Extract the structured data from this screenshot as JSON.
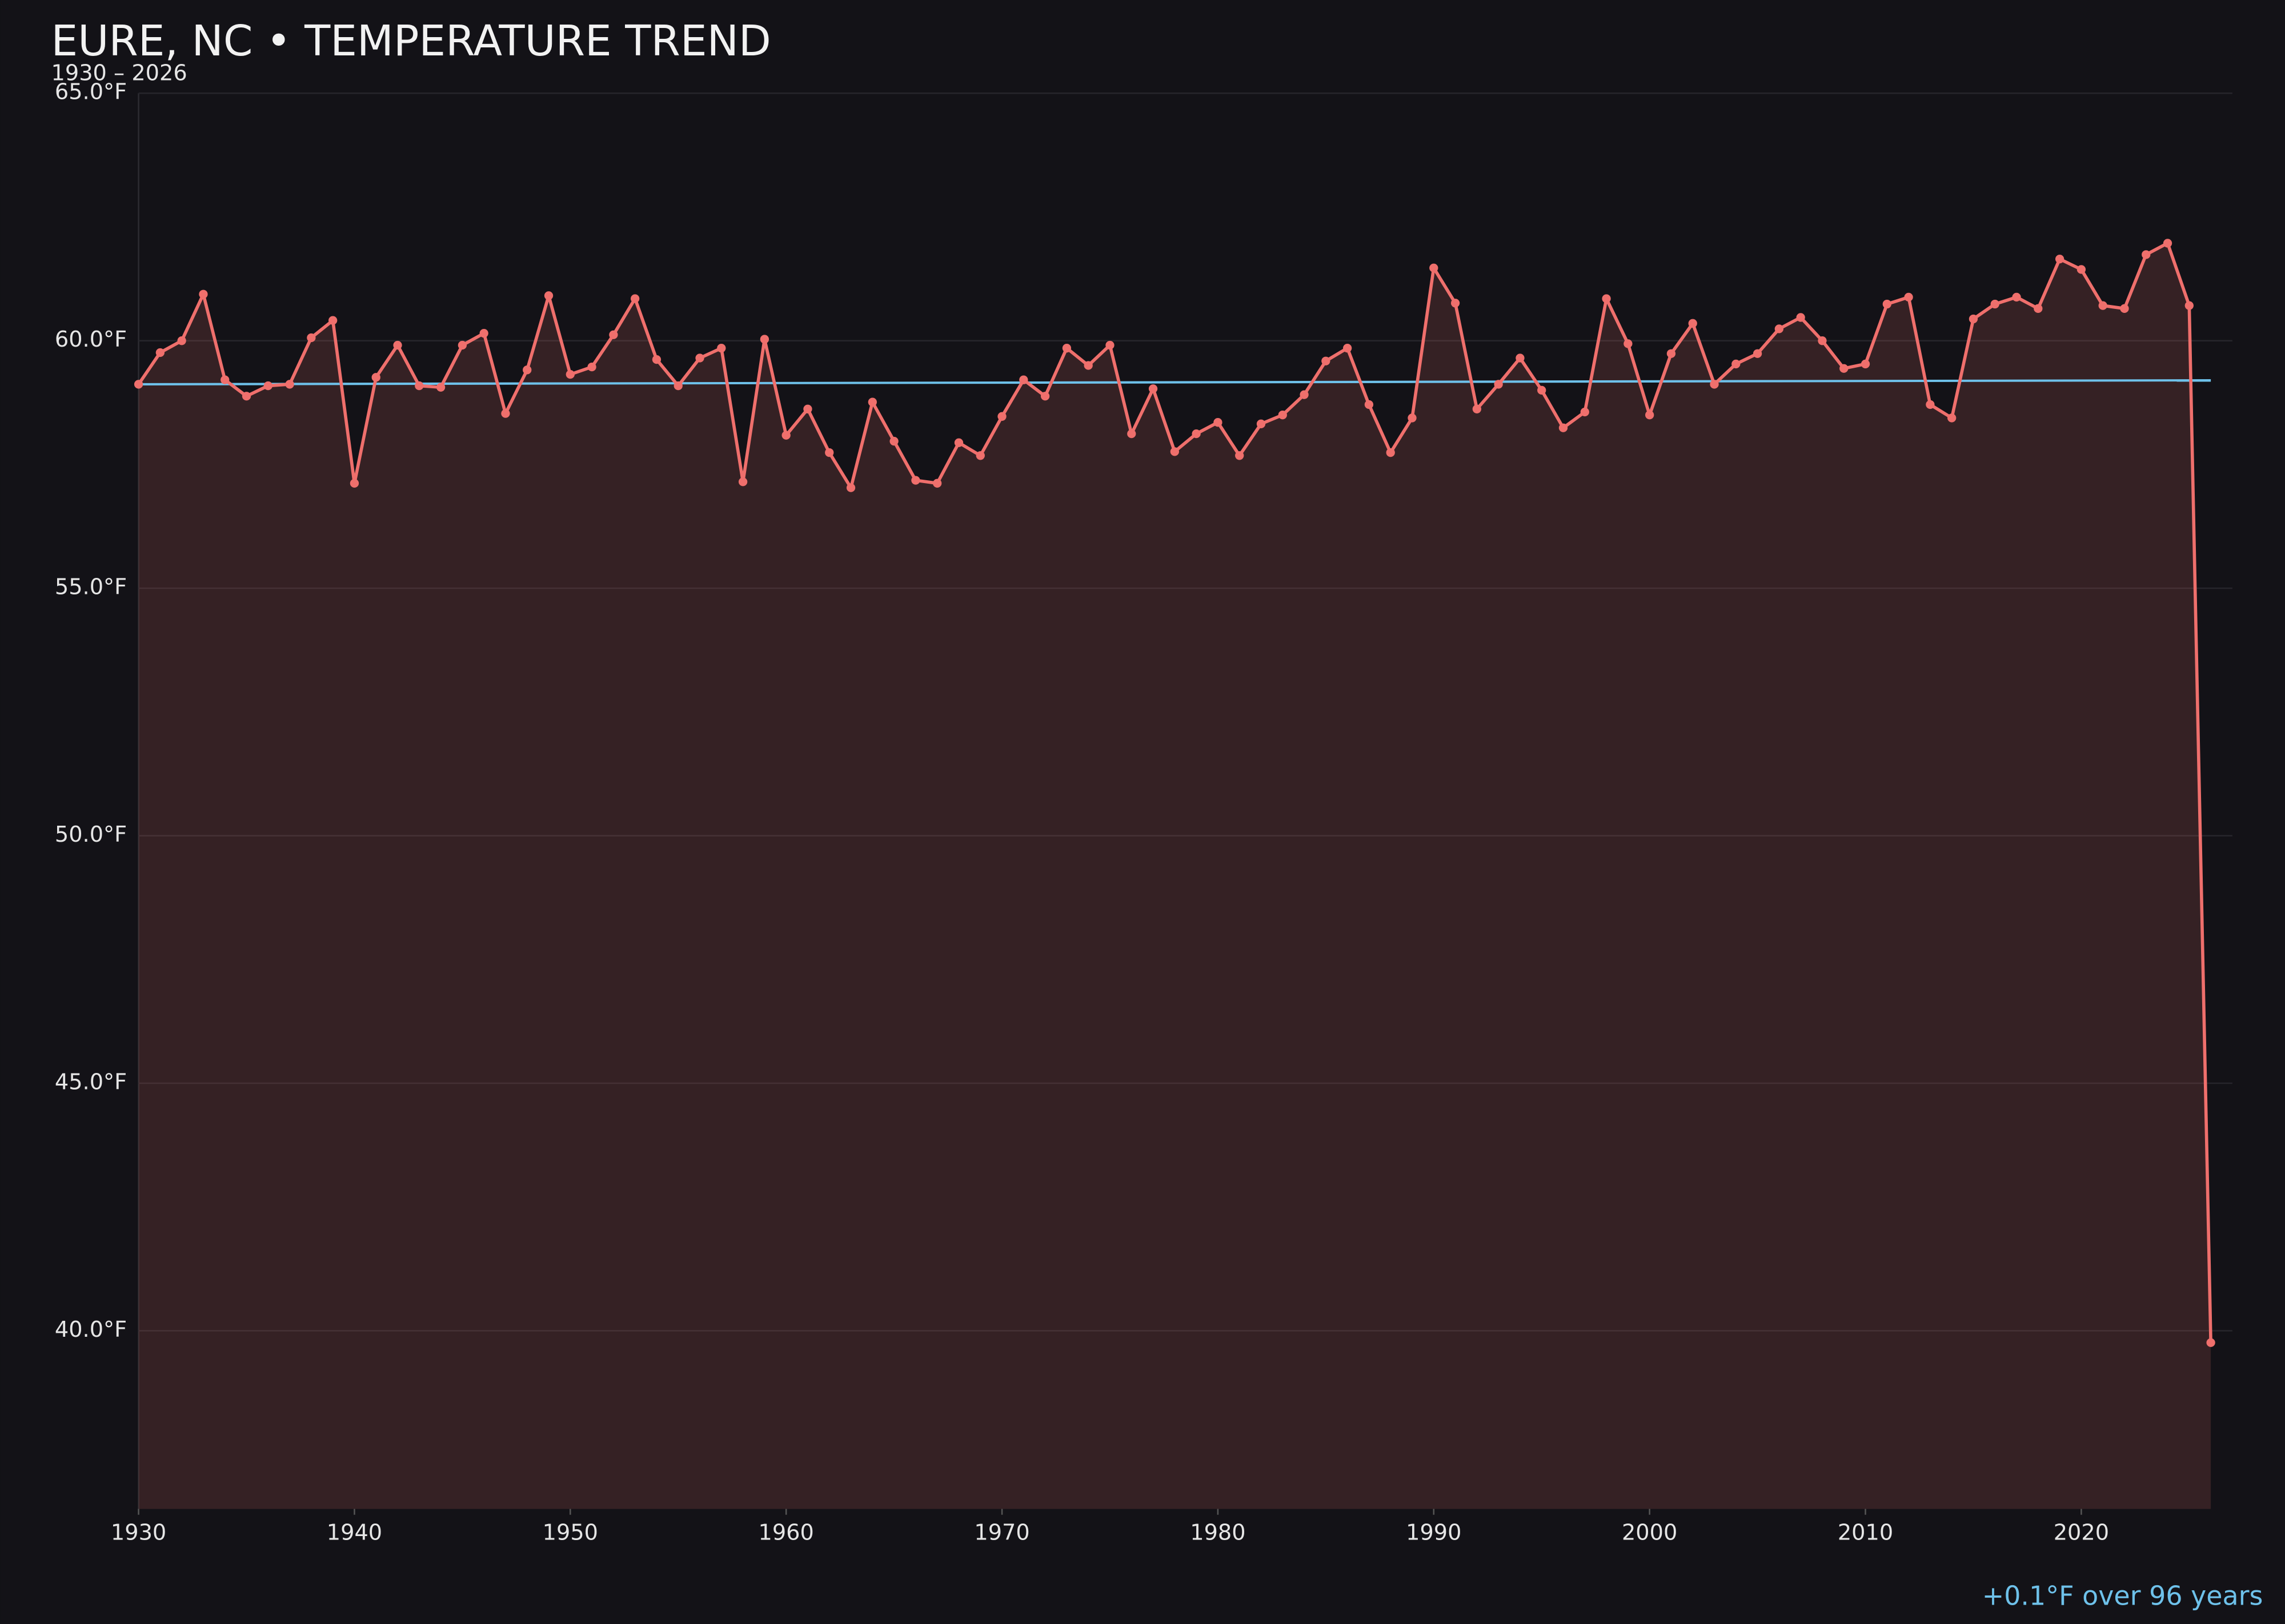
{
  "chart_data": {
    "type": "line",
    "title": "EURE, NC • TEMPERATURE TREND",
    "subtitle": "1930 – 2026",
    "annotation": "+0.1°F over 96 years",
    "x": [
      1930,
      1931,
      1932,
      1933,
      1934,
      1935,
      1936,
      1937,
      1938,
      1939,
      1940,
      1941,
      1942,
      1943,
      1944,
      1945,
      1946,
      1947,
      1948,
      1949,
      1950,
      1951,
      1952,
      1953,
      1954,
      1955,
      1956,
      1957,
      1958,
      1959,
      1960,
      1961,
      1962,
      1963,
      1964,
      1965,
      1966,
      1967,
      1968,
      1969,
      1970,
      1971,
      1972,
      1973,
      1974,
      1975,
      1976,
      1977,
      1978,
      1979,
      1980,
      1981,
      1982,
      1983,
      1984,
      1985,
      1986,
      1987,
      1988,
      1989,
      1990,
      1991,
      1992,
      1993,
      1994,
      1995,
      1996,
      1997,
      1998,
      1999,
      2000,
      2001,
      2002,
      2003,
      2004,
      2005,
      2006,
      2007,
      2008,
      2009,
      2010,
      2011,
      2012,
      2013,
      2014,
      2015,
      2016,
      2017,
      2018,
      2019,
      2020,
      2021,
      2022,
      2023,
      2024,
      2025,
      2026
    ],
    "series": [
      {
        "color": "#ef6f6c",
        "fill": "rgba(239,111,108,0.16)",
        "values": [
          59.12,
          59.76,
          60.0,
          60.94,
          59.21,
          58.88,
          59.09,
          59.12,
          60.06,
          60.41,
          57.12,
          59.26,
          59.91,
          59.09,
          59.06,
          59.91,
          60.15,
          58.53,
          59.41,
          60.91,
          59.32,
          59.47,
          60.12,
          60.85,
          59.62,
          59.09,
          59.65,
          59.85,
          57.15,
          60.03,
          58.09,
          58.62,
          57.74,
          57.03,
          58.76,
          57.97,
          57.18,
          57.12,
          57.94,
          57.68,
          58.47,
          59.21,
          58.88,
          59.85,
          59.5,
          59.91,
          58.12,
          59.03,
          57.76,
          58.12,
          58.35,
          57.68,
          58.32,
          58.5,
          58.91,
          59.59,
          59.85,
          58.71,
          57.74,
          58.44,
          61.47,
          60.76,
          58.62,
          59.12,
          59.65,
          59.0,
          58.24,
          58.56,
          60.85,
          59.94,
          58.5,
          59.74,
          60.35,
          59.12,
          59.53,
          59.74,
          60.24,
          60.47,
          60.0,
          59.44,
          59.53,
          60.74,
          60.88,
          58.71,
          58.44,
          60.44,
          60.74,
          60.88,
          60.65,
          61.65,
          61.44,
          60.71,
          60.65,
          61.74,
          61.97,
          60.71,
          39.76
        ]
      }
    ],
    "trend": {
      "color": "#6ec1ea",
      "x": [
        1930,
        2026
      ],
      "values": [
        59.12,
        59.2
      ]
    },
    "xlim": [
      1930,
      2027
    ],
    "ylim": [
      36.4,
      65
    ],
    "xticks": [
      1930,
      1940,
      1950,
      1960,
      1970,
      1980,
      1990,
      2000,
      2010,
      2020
    ],
    "yticks": [
      {
        "value": 40,
        "label": "40.0°F"
      },
      {
        "value": 45,
        "label": "45.0°F"
      },
      {
        "value": 50,
        "label": "50.0°F"
      },
      {
        "value": 55,
        "label": "55.0°F"
      },
      {
        "value": 60,
        "label": "60.0°F"
      },
      {
        "value": 65,
        "label": "65.0°F"
      }
    ],
    "grid": true
  }
}
